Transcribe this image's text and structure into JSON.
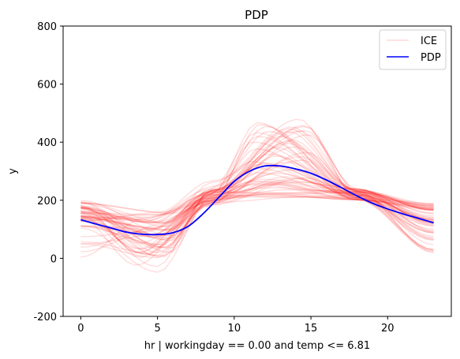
{
  "chart_data": {
    "type": "line",
    "title": "PDP",
    "xlabel": "hr | workingday == 0.00 and temp <= 6.81",
    "ylabel": "y",
    "xlim": [
      -1.15,
      24.15
    ],
    "ylim": [
      -200,
      800
    ],
    "xticks": [
      0,
      5,
      10,
      15,
      20
    ],
    "yticks": [
      -200,
      0,
      200,
      400,
      600,
      800
    ],
    "grid": false,
    "legend_position": "top-right",
    "legend": [
      {
        "label": "ICE",
        "color": "#ff0000",
        "alpha": 0.15
      },
      {
        "label": "PDP",
        "color": "#0000ff",
        "alpha": 1
      }
    ],
    "x": [
      0,
      1,
      2,
      3,
      4,
      5,
      6,
      7,
      8,
      9,
      10,
      11,
      12,
      13,
      14,
      15,
      16,
      17,
      18,
      19,
      20,
      21,
      22,
      23
    ],
    "series": [
      {
        "name": "PDP",
        "color": "#0000ff",
        "values": [
          133,
          118,
          104,
          90,
          83,
          82,
          88,
          110,
          155,
          210,
          265,
          300,
          318,
          318,
          308,
          293,
          270,
          243,
          215,
          190,
          170,
          153,
          138,
          122
        ]
      }
    ],
    "ice_params": {
      "count": 60,
      "color": "#ff0000",
      "alpha": 0.13,
      "base_min": 110,
      "base_max": 200,
      "dip_min": 0,
      "dip_max": 160,
      "peak_min": 210,
      "peak_max": 490,
      "end_min": 10,
      "end_max": 190
    }
  }
}
